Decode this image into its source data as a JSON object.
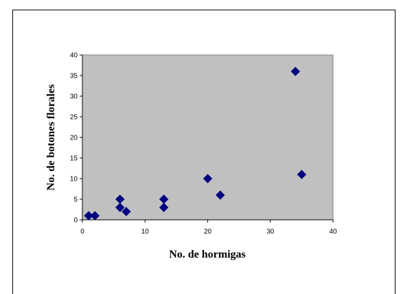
{
  "chart_data": {
    "type": "scatter",
    "title": "",
    "xlabel": "No. de hormigas",
    "ylabel": "No. de botones florales",
    "xlim": [
      0,
      40
    ],
    "ylim": [
      0,
      40
    ],
    "xticks": [
      "0",
      "10",
      "20",
      "30",
      "40"
    ],
    "yticks": [
      "0",
      "5",
      "10",
      "15",
      "20",
      "25",
      "30",
      "35",
      "40"
    ],
    "grid": false,
    "legend": "none",
    "plot_background": "#c0c0c0",
    "marker": "diamond",
    "marker_color": "#000080",
    "points": [
      {
        "x": 1,
        "y": 1
      },
      {
        "x": 2,
        "y": 1
      },
      {
        "x": 6,
        "y": 5
      },
      {
        "x": 6,
        "y": 3
      },
      {
        "x": 7,
        "y": 2
      },
      {
        "x": 13,
        "y": 5
      },
      {
        "x": 13,
        "y": 3
      },
      {
        "x": 20,
        "y": 10
      },
      {
        "x": 22,
        "y": 6
      },
      {
        "x": 34,
        "y": 36
      },
      {
        "x": 35,
        "y": 11
      }
    ]
  }
}
